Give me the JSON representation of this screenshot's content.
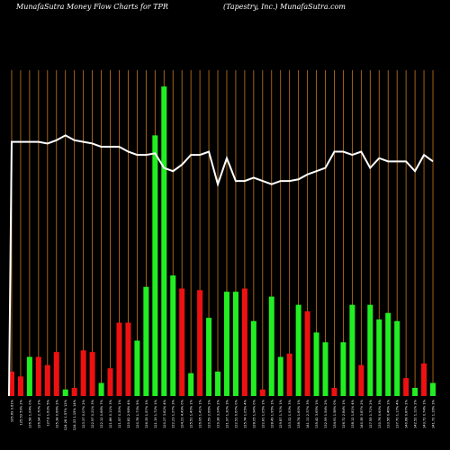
{
  "header": {
    "title_left": "MunafaSutra  Money Flow  Charts for TPR",
    "title_right": "(Tapestry,  Inc.) MunafaSutra.com"
  },
  "chart_data": {
    "type": "bar",
    "title": "MunafaSutra  Money Flow  Charts for TPR",
    "subtitle": "(Tapestry,  Inc.) MunafaSutra.com",
    "grid": true,
    "colors": {
      "up": "#22ee22",
      "down": "#ee1111",
      "grid": "#c87a1c",
      "line": "#ffffff",
      "background": "#000000"
    },
    "categories": [
      "105.69 9.61%",
      "125.53 59% 2%",
      "126.58 1.04% 0%",
      "126.94 2.70% 2%",
      "127.8 1.63% 5%",
      "125.38 0.66% 2%",
      "124.28 1.57% 12%",
      "124.33 1.15% 14%",
      "123.37 0.07% 2%",
      "122.57 0.21% 3%",
      "122.12 0.66% 7%",
      "121.86 0.11% 3%",
      "121.57 0.39% 1%",
      "120.82 2.98% 4%",
      "120.78 1.73% 5%",
      "126.35 1.57% 1%",
      "121.19 1.72% 1%",
      "120.27 3.82% 4%",
      "122.23 1.27% 3%",
      "124.21 4.49% 0%",
      "125.51 1.40% 1%",
      "126.06 1.41% 1%",
      "120.59 2.66% 1%",
      "119.38 3.24% 2%",
      "121.97 1.30% 3%",
      "122.51 0.67% 0%",
      "125.74 1.05% 4%",
      "128.05 1.94% 0%",
      "122.81 1.05% 1%",
      "128.49 1.95% 1%",
      "129.87 1.70% 1%",
      "133.32 1.93% 3%",
      "138.74 1.60% 1%",
      "141.11 2.37% 3%",
      "135.42 3.65% 1%",
      "132.99 1.54% 2%",
      "134.91 1.58% 0%",
      "126.72 2.84% 1%",
      "138.12 1.81% 4%",
      "140.38 3.87% 2%",
      "127.55 1.71% 2%",
      "130.76 0.60% 3%",
      "133.56 0.46% 1%",
      "137.70 1.17% 4%",
      "140.68 0.87% 2%",
      "142.52 1.11% 2%",
      "143.72 0.74% 1%",
      "141.72 1.16% 3%"
    ],
    "series": [
      {
        "values": [
          0.075,
          0.06,
          0.12,
          0.12,
          0.095,
          0.135,
          0.02,
          0.025,
          0.14,
          0.135,
          0.04,
          0.085,
          0.225,
          0.225,
          0.17,
          0.335,
          0.8,
          0.95,
          0.37,
          0.33,
          0.07,
          0.325,
          0.24,
          0.075,
          0.32,
          0.32,
          0.33,
          0.23,
          0.02,
          0.305,
          0.12,
          0.13,
          0.28,
          0.26,
          0.195,
          0.165,
          0.025,
          0.165,
          0.28,
          0.095,
          0.28,
          0.235,
          0.255,
          0.23,
          0.055,
          0.025,
          0.1,
          0.04
        ],
        "directions": [
          "down",
          "down",
          "up",
          "down",
          "down",
          "down",
          "up",
          "down",
          "down",
          "down",
          "up",
          "down",
          "down",
          "down",
          "up",
          "up",
          "up",
          "up",
          "up",
          "down",
          "up",
          "down",
          "up",
          "up",
          "up",
          "up",
          "down",
          "up",
          "down",
          "up",
          "up",
          "down",
          "up",
          "down",
          "up",
          "up",
          "down",
          "up",
          "up",
          "down",
          "up",
          "up",
          "up",
          "up",
          "down",
          "up",
          "down",
          "up"
        ]
      }
    ],
    "price_line": [
      0.78,
      0.78,
      0.78,
      0.78,
      0.775,
      0.785,
      0.8,
      0.785,
      0.78,
      0.775,
      0.765,
      0.765,
      0.765,
      0.75,
      0.74,
      0.74,
      0.745,
      0.7,
      0.69,
      0.71,
      0.74,
      0.74,
      0.75,
      0.65,
      0.73,
      0.66,
      0.66,
      0.67,
      0.66,
      0.65,
      0.66,
      0.66,
      0.665,
      0.68,
      0.69,
      0.7,
      0.75,
      0.75,
      0.74,
      0.75,
      0.7,
      0.73,
      0.72,
      0.72,
      0.72,
      0.69,
      0.74,
      0.72
    ]
  }
}
